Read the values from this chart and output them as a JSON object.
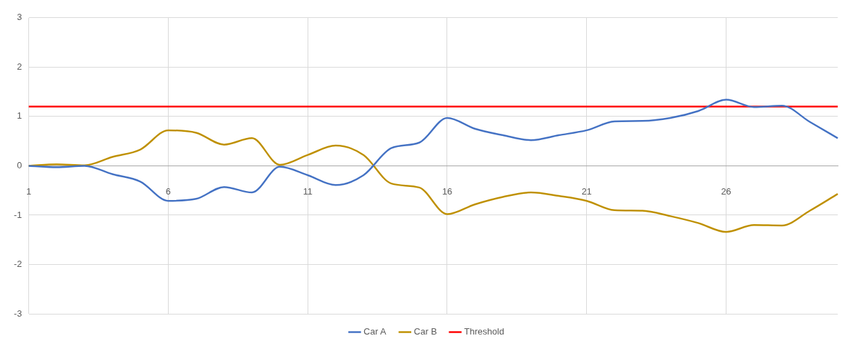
{
  "chart_data": {
    "type": "line",
    "categories": [
      "1",
      null,
      null,
      null,
      null,
      "6",
      null,
      null,
      null,
      null,
      "11",
      null,
      null,
      null,
      null,
      "16",
      null,
      null,
      null,
      null,
      "21",
      null,
      null,
      null,
      null,
      "26",
      null,
      null,
      null,
      null
    ],
    "series": [
      {
        "name": "Car A",
        "color": "#4472c4",
        "values": [
          0,
          -0.03,
          0,
          -0.17,
          -0.32,
          -0.71,
          -0.67,
          -0.43,
          -0.54,
          -0.02,
          -0.19,
          -0.39,
          -0.19,
          0.36,
          0.47,
          0.97,
          0.75,
          0.62,
          0.52,
          0.62,
          0.72,
          0.9,
          0.91,
          0.97,
          1.11,
          1.34,
          1.19,
          1.22,
          0.89,
          0.56
        ]
      },
      {
        "name": "Car B",
        "color": "#bf9000",
        "values": [
          0,
          0.03,
          0.01,
          0.18,
          0.33,
          0.72,
          0.67,
          0.43,
          0.56,
          0.02,
          0.22,
          0.41,
          0.22,
          -0.36,
          -0.44,
          -0.98,
          -0.78,
          -0.63,
          -0.54,
          -0.61,
          -0.71,
          -0.9,
          -0.91,
          -1.02,
          -1.16,
          -1.34,
          -1.2,
          -1.21,
          -0.91,
          -0.57
        ]
      },
      {
        "name": "Threshold",
        "color": "#ff0000",
        "values": [
          1.2,
          1.2,
          1.2,
          1.2,
          1.2,
          1.2,
          1.2,
          1.2,
          1.2,
          1.2,
          1.2,
          1.2,
          1.2,
          1.2,
          1.2,
          1.2,
          1.2,
          1.2,
          1.2,
          1.2,
          1.2,
          1.2,
          1.2,
          1.2,
          1.2,
          1.2,
          1.2,
          1.2,
          1.2,
          1.2
        ]
      }
    ],
    "ylim": [
      -3,
      3
    ],
    "yticks": [
      -3,
      -2,
      -1,
      0,
      1,
      2,
      3
    ],
    "grid": true,
    "legend": "bottom",
    "marker": "none",
    "line_style": "solid"
  }
}
